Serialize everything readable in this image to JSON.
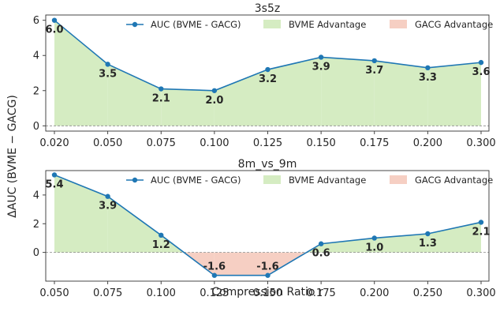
{
  "figure": {
    "ylabel": "ΔAUC (BVME − GACG)",
    "xlabel": "Compression Ratio r"
  },
  "legend": {
    "line_label": "AUC (BVME - GACG)",
    "pos_label": "BVME Advantage",
    "neg_label": "GACG Advantage"
  },
  "colors": {
    "line": "#1f77b4",
    "pos_fill": "#d5ecc2",
    "neg_fill": "#f6cfc3",
    "zero_line": "#888888",
    "axes": "#333333",
    "text": "#262626"
  },
  "chart_data": [
    {
      "type": "line",
      "title": "3s5z",
      "categories": [
        "0.020",
        "0.050",
        "0.075",
        "0.100",
        "0.125",
        "0.150",
        "0.175",
        "0.200",
        "0.300"
      ],
      "series": [
        {
          "name": "AUC (BVME - GACG)",
          "values": [
            6.0,
            3.5,
            2.1,
            2.0,
            3.2,
            3.9,
            3.7,
            3.3,
            3.6
          ],
          "labels": [
            "6.0",
            "3.5",
            "2.1",
            "2.0",
            "3.2",
            "3.9",
            "3.7",
            "3.3",
            "3.6"
          ]
        }
      ],
      "ylim": [
        -0.3,
        6.3
      ],
      "yticks": [
        0,
        2,
        4,
        6
      ],
      "grid": false,
      "legend_position": "top-right"
    },
    {
      "type": "line",
      "title": "8m_vs_9m",
      "categories": [
        "0.050",
        "0.075",
        "0.100",
        "0.125",
        "0.150",
        "0.175",
        "0.200",
        "0.250",
        "0.300"
      ],
      "series": [
        {
          "name": "AUC (BVME - GACG)",
          "values": [
            5.4,
            3.9,
            1.2,
            -1.6,
            -1.6,
            0.6,
            1.0,
            1.3,
            2.1
          ],
          "labels": [
            "5.4",
            "3.9",
            "1.2",
            "-1.6",
            "-1.6",
            "0.6",
            "1.0",
            "1.3",
            "2.1"
          ]
        }
      ],
      "ylim": [
        -2.0,
        5.7
      ],
      "yticks": [
        0,
        2,
        4
      ],
      "grid": false,
      "legend_position": "top-right"
    }
  ]
}
